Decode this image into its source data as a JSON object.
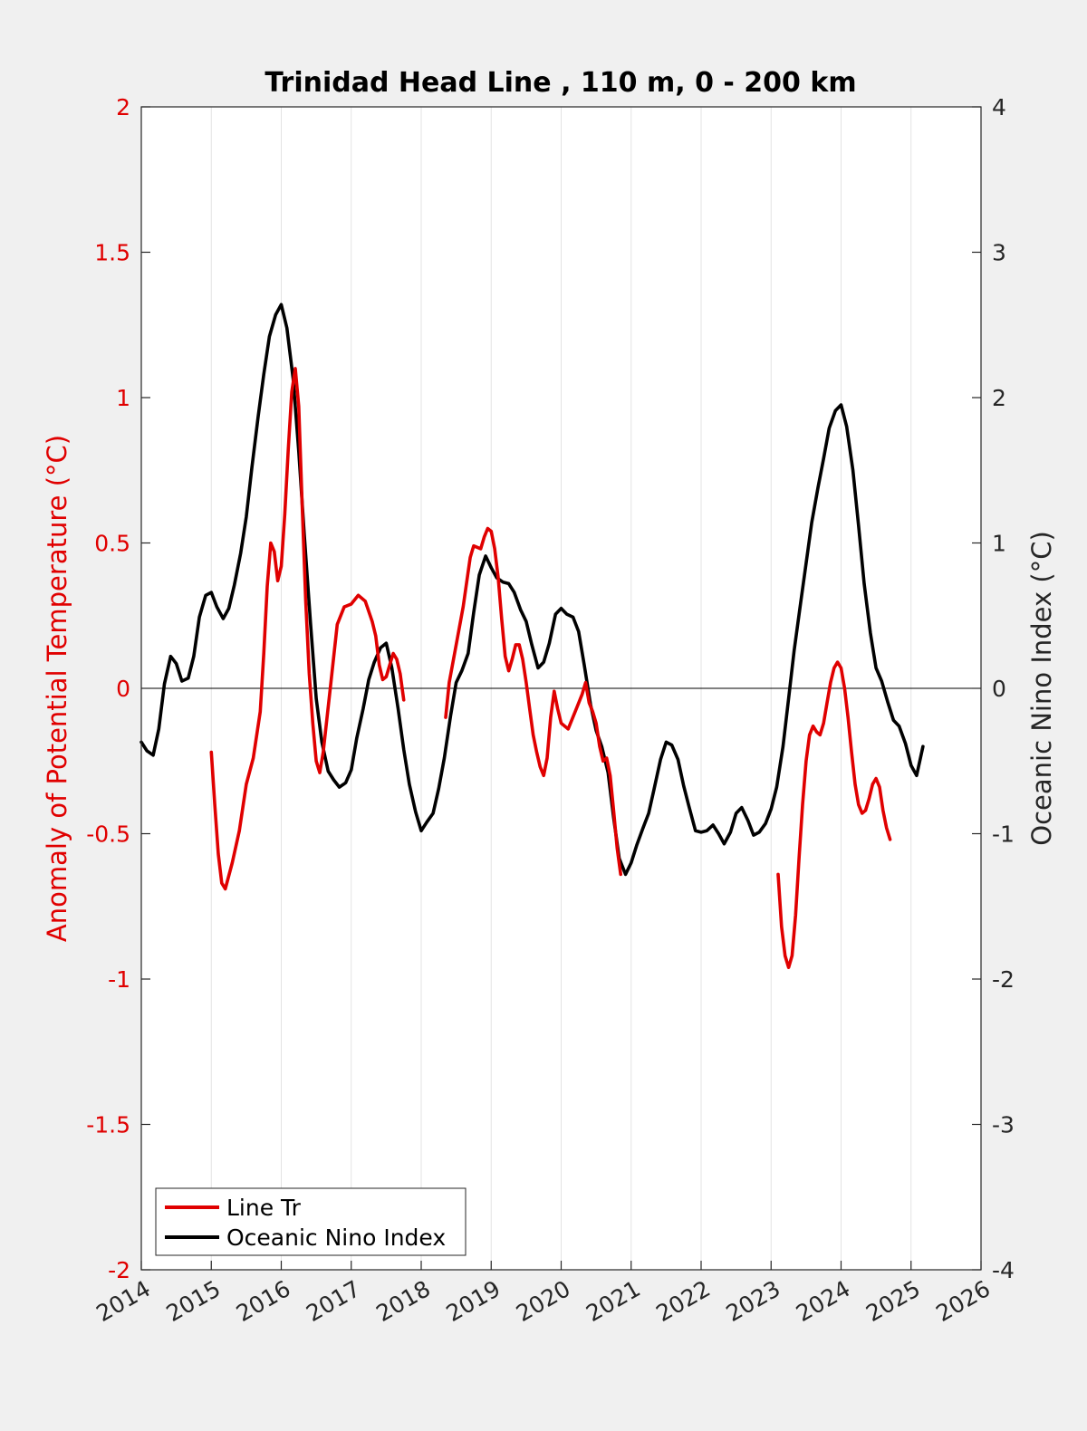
{
  "chart_data": {
    "type": "line",
    "title": "Trinidad Head Line , 110 m, 0 - 200 km",
    "ylabel_left": "Anomaly of Potential Temperature (°C)",
    "ylabel_right": "Oceanic Nino Index (°C)",
    "xlim": [
      2014,
      2026
    ],
    "ylim_left": [
      -2,
      2
    ],
    "ylim_right": [
      -4,
      4
    ],
    "x_ticks": [
      "2014",
      "2015",
      "2016",
      "2017",
      "2018",
      "2019",
      "2020",
      "2021",
      "2022",
      "2023",
      "2024",
      "2025",
      "2026"
    ],
    "y_ticks_left": [
      "2",
      "1.5",
      "1",
      "0.5",
      "0",
      "-0.5",
      "-1",
      "-1.5",
      "-2"
    ],
    "y_ticks_right": [
      "4",
      "3",
      "2",
      "1",
      "0",
      "-1",
      "-2",
      "-3",
      "-4"
    ],
    "grid": "vertical lines at x ticks",
    "legend_position": "bottom-left",
    "colors": {
      "line_tr": "#e00000",
      "oni": "#000000",
      "left_axis": "#e00000",
      "right_axis": "#262626"
    },
    "series": [
      {
        "name": "Line Tr",
        "axis": "left",
        "color": "#e00000",
        "segments": [
          [
            [
              2015.0,
              -0.22
            ],
            [
              2015.05,
              -0.4
            ],
            [
              2015.1,
              -0.57
            ],
            [
              2015.15,
              -0.67
            ],
            [
              2015.2,
              -0.69
            ],
            [
              2015.3,
              -0.6
            ],
            [
              2015.4,
              -0.49
            ],
            [
              2015.5,
              -0.33
            ],
            [
              2015.6,
              -0.24
            ],
            [
              2015.7,
              -0.08
            ],
            [
              2015.75,
              0.12
            ],
            [
              2015.8,
              0.35
            ],
            [
              2015.85,
              0.5
            ],
            [
              2015.9,
              0.47
            ],
            [
              2015.95,
              0.37
            ],
            [
              2016.0,
              0.42
            ],
            [
              2016.05,
              0.6
            ],
            [
              2016.1,
              0.82
            ],
            [
              2016.15,
              1.02
            ],
            [
              2016.2,
              1.1
            ],
            [
              2016.25,
              0.97
            ],
            [
              2016.3,
              0.62
            ],
            [
              2016.35,
              0.3
            ],
            [
              2016.4,
              0.05
            ],
            [
              2016.45,
              -0.12
            ],
            [
              2016.5,
              -0.25
            ],
            [
              2016.55,
              -0.29
            ],
            [
              2016.6,
              -0.22
            ],
            [
              2016.7,
              0.0
            ],
            [
              2016.8,
              0.22
            ],
            [
              2016.9,
              0.28
            ],
            [
              2017.0,
              0.29
            ],
            [
              2017.1,
              0.32
            ],
            [
              2017.2,
              0.3
            ],
            [
              2017.3,
              0.23
            ],
            [
              2017.35,
              0.18
            ],
            [
              2017.4,
              0.08
            ],
            [
              2017.45,
              0.03
            ],
            [
              2017.5,
              0.04
            ],
            [
              2017.55,
              0.08
            ],
            [
              2017.6,
              0.12
            ],
            [
              2017.65,
              0.1
            ],
            [
              2017.7,
              0.05
            ],
            [
              2017.75,
              -0.04
            ]
          ],
          [
            [
              2018.35,
              -0.1
            ],
            [
              2018.4,
              0.02
            ],
            [
              2018.5,
              0.15
            ],
            [
              2018.6,
              0.28
            ],
            [
              2018.7,
              0.45
            ],
            [
              2018.75,
              0.49
            ],
            [
              2018.85,
              0.48
            ],
            [
              2018.9,
              0.52
            ],
            [
              2018.95,
              0.55
            ],
            [
              2019.0,
              0.54
            ],
            [
              2019.05,
              0.48
            ],
            [
              2019.1,
              0.38
            ],
            [
              2019.15,
              0.24
            ],
            [
              2019.2,
              0.11
            ],
            [
              2019.25,
              0.06
            ],
            [
              2019.3,
              0.1
            ],
            [
              2019.35,
              0.15
            ],
            [
              2019.4,
              0.15
            ],
            [
              2019.45,
              0.1
            ],
            [
              2019.5,
              0.02
            ],
            [
              2019.55,
              -0.07
            ],
            [
              2019.6,
              -0.16
            ],
            [
              2019.65,
              -0.22
            ],
            [
              2019.7,
              -0.27
            ],
            [
              2019.75,
              -0.3
            ],
            [
              2019.8,
              -0.24
            ],
            [
              2019.85,
              -0.1
            ],
            [
              2019.9,
              -0.01
            ],
            [
              2019.95,
              -0.07
            ],
            [
              2020.0,
              -0.12
            ],
            [
              2020.1,
              -0.14
            ],
            [
              2020.2,
              -0.08
            ],
            [
              2020.3,
              -0.02
            ],
            [
              2020.35,
              0.02
            ],
            [
              2020.4,
              -0.05
            ],
            [
              2020.45,
              -0.08
            ],
            [
              2020.5,
              -0.12
            ],
            [
              2020.55,
              -0.2
            ],
            [
              2020.6,
              -0.25
            ],
            [
              2020.65,
              -0.24
            ],
            [
              2020.7,
              -0.3
            ],
            [
              2020.75,
              -0.42
            ],
            [
              2020.8,
              -0.55
            ],
            [
              2020.85,
              -0.64
            ]
          ],
          [
            [
              2023.1,
              -0.64
            ],
            [
              2023.15,
              -0.82
            ],
            [
              2023.2,
              -0.92
            ],
            [
              2023.25,
              -0.96
            ],
            [
              2023.3,
              -0.92
            ],
            [
              2023.35,
              -0.78
            ],
            [
              2023.4,
              -0.58
            ],
            [
              2023.45,
              -0.4
            ],
            [
              2023.5,
              -0.25
            ],
            [
              2023.55,
              -0.16
            ],
            [
              2023.6,
              -0.13
            ],
            [
              2023.65,
              -0.15
            ],
            [
              2023.7,
              -0.16
            ],
            [
              2023.75,
              -0.12
            ],
            [
              2023.8,
              -0.05
            ],
            [
              2023.85,
              0.02
            ],
            [
              2023.9,
              0.07
            ],
            [
              2023.95,
              0.09
            ],
            [
              2024.0,
              0.07
            ],
            [
              2024.05,
              0.0
            ],
            [
              2024.1,
              -0.1
            ],
            [
              2024.15,
              -0.22
            ],
            [
              2024.2,
              -0.33
            ],
            [
              2024.25,
              -0.4
            ],
            [
              2024.3,
              -0.43
            ],
            [
              2024.35,
              -0.42
            ],
            [
              2024.4,
              -0.38
            ],
            [
              2024.45,
              -0.33
            ],
            [
              2024.5,
              -0.31
            ],
            [
              2024.55,
              -0.34
            ],
            [
              2024.6,
              -0.42
            ],
            [
              2024.65,
              -0.48
            ],
            [
              2024.7,
              -0.52
            ]
          ]
        ]
      },
      {
        "name": "Oceanic Nino Index",
        "axis": "right",
        "color": "#000000",
        "segments": [
          [
            [
              2014.0,
              -0.37
            ],
            [
              2014.08,
              -0.43
            ],
            [
              2014.17,
              -0.46
            ],
            [
              2014.25,
              -0.28
            ],
            [
              2014.33,
              0.03
            ],
            [
              2014.42,
              0.22
            ],
            [
              2014.5,
              0.17
            ],
            [
              2014.58,
              0.05
            ],
            [
              2014.67,
              0.07
            ],
            [
              2014.75,
              0.22
            ],
            [
              2014.83,
              0.49
            ],
            [
              2014.92,
              0.64
            ],
            [
              2015.0,
              0.66
            ],
            [
              2015.08,
              0.56
            ],
            [
              2015.17,
              0.48
            ],
            [
              2015.25,
              0.55
            ],
            [
              2015.33,
              0.71
            ],
            [
              2015.42,
              0.93
            ],
            [
              2015.5,
              1.18
            ],
            [
              2015.58,
              1.52
            ],
            [
              2015.67,
              1.87
            ],
            [
              2015.75,
              2.16
            ],
            [
              2015.83,
              2.42
            ],
            [
              2015.92,
              2.57
            ],
            [
              2016.0,
              2.64
            ],
            [
              2016.08,
              2.48
            ],
            [
              2016.17,
              2.13
            ],
            [
              2016.25,
              1.63
            ],
            [
              2016.33,
              1.05
            ],
            [
              2016.42,
              0.44
            ],
            [
              2016.5,
              -0.07
            ],
            [
              2016.58,
              -0.37
            ],
            [
              2016.67,
              -0.57
            ],
            [
              2016.75,
              -0.63
            ],
            [
              2016.83,
              -0.68
            ],
            [
              2016.92,
              -0.65
            ],
            [
              2017.0,
              -0.56
            ],
            [
              2017.08,
              -0.34
            ],
            [
              2017.17,
              -0.14
            ],
            [
              2017.25,
              0.06
            ],
            [
              2017.33,
              0.18
            ],
            [
              2017.42,
              0.28
            ],
            [
              2017.5,
              0.31
            ],
            [
              2017.58,
              0.14
            ],
            [
              2017.67,
              -0.14
            ],
            [
              2017.75,
              -0.42
            ],
            [
              2017.83,
              -0.66
            ],
            [
              2017.92,
              -0.85
            ],
            [
              2018.0,
              -0.98
            ],
            [
              2018.08,
              -0.92
            ],
            [
              2018.17,
              -0.86
            ],
            [
              2018.25,
              -0.69
            ],
            [
              2018.33,
              -0.48
            ],
            [
              2018.42,
              -0.19
            ],
            [
              2018.5,
              0.04
            ],
            [
              2018.58,
              0.12
            ],
            [
              2018.67,
              0.24
            ],
            [
              2018.75,
              0.52
            ],
            [
              2018.83,
              0.78
            ],
            [
              2018.92,
              0.91
            ],
            [
              2019.0,
              0.83
            ],
            [
              2019.08,
              0.76
            ],
            [
              2019.17,
              0.73
            ],
            [
              2019.25,
              0.72
            ],
            [
              2019.33,
              0.66
            ],
            [
              2019.42,
              0.54
            ],
            [
              2019.5,
              0.46
            ],
            [
              2019.58,
              0.3
            ],
            [
              2019.67,
              0.14
            ],
            [
              2019.75,
              0.18
            ],
            [
              2019.83,
              0.31
            ],
            [
              2019.92,
              0.51
            ],
            [
              2020.0,
              0.55
            ],
            [
              2020.08,
              0.51
            ],
            [
              2020.17,
              0.49
            ],
            [
              2020.25,
              0.39
            ],
            [
              2020.33,
              0.16
            ],
            [
              2020.42,
              -0.11
            ],
            [
              2020.5,
              -0.29
            ],
            [
              2020.58,
              -0.4
            ],
            [
              2020.67,
              -0.58
            ],
            [
              2020.75,
              -0.89
            ],
            [
              2020.83,
              -1.17
            ],
            [
              2020.92,
              -1.28
            ],
            [
              2021.0,
              -1.2
            ],
            [
              2021.08,
              -1.08
            ],
            [
              2021.17,
              -0.96
            ],
            [
              2021.25,
              -0.86
            ],
            [
              2021.33,
              -0.69
            ],
            [
              2021.42,
              -0.49
            ],
            [
              2021.5,
              -0.37
            ],
            [
              2021.58,
              -0.39
            ],
            [
              2021.67,
              -0.49
            ],
            [
              2021.75,
              -0.67
            ],
            [
              2021.83,
              -0.82
            ],
            [
              2021.92,
              -0.98
            ],
            [
              2022.0,
              -0.99
            ],
            [
              2022.08,
              -0.98
            ],
            [
              2022.17,
              -0.94
            ],
            [
              2022.25,
              -1.0
            ],
            [
              2022.33,
              -1.07
            ],
            [
              2022.42,
              -0.99
            ],
            [
              2022.5,
              -0.86
            ],
            [
              2022.58,
              -0.82
            ],
            [
              2022.67,
              -0.91
            ],
            [
              2022.75,
              -1.01
            ],
            [
              2022.83,
              -0.99
            ],
            [
              2022.92,
              -0.93
            ],
            [
              2023.0,
              -0.83
            ],
            [
              2023.08,
              -0.68
            ],
            [
              2023.17,
              -0.4
            ],
            [
              2023.25,
              -0.07
            ],
            [
              2023.33,
              0.26
            ],
            [
              2023.42,
              0.58
            ],
            [
              2023.5,
              0.86
            ],
            [
              2023.58,
              1.14
            ],
            [
              2023.67,
              1.38
            ],
            [
              2023.75,
              1.58
            ],
            [
              2023.83,
              1.79
            ],
            [
              2023.92,
              1.91
            ],
            [
              2024.0,
              1.95
            ],
            [
              2024.08,
              1.8
            ],
            [
              2024.17,
              1.5
            ],
            [
              2024.25,
              1.12
            ],
            [
              2024.33,
              0.72
            ],
            [
              2024.42,
              0.38
            ],
            [
              2024.5,
              0.14
            ],
            [
              2024.58,
              0.05
            ],
            [
              2024.67,
              -0.1
            ],
            [
              2024.75,
              -0.22
            ],
            [
              2024.83,
              -0.26
            ],
            [
              2024.92,
              -0.38
            ],
            [
              2025.0,
              -0.53
            ],
            [
              2025.08,
              -0.6
            ],
            [
              2025.17,
              -0.4
            ]
          ]
        ]
      }
    ],
    "legend": [
      {
        "label": "Line Tr",
        "color": "#e00000"
      },
      {
        "label": "Oceanic Nino Index",
        "color": "#000000"
      }
    ]
  }
}
